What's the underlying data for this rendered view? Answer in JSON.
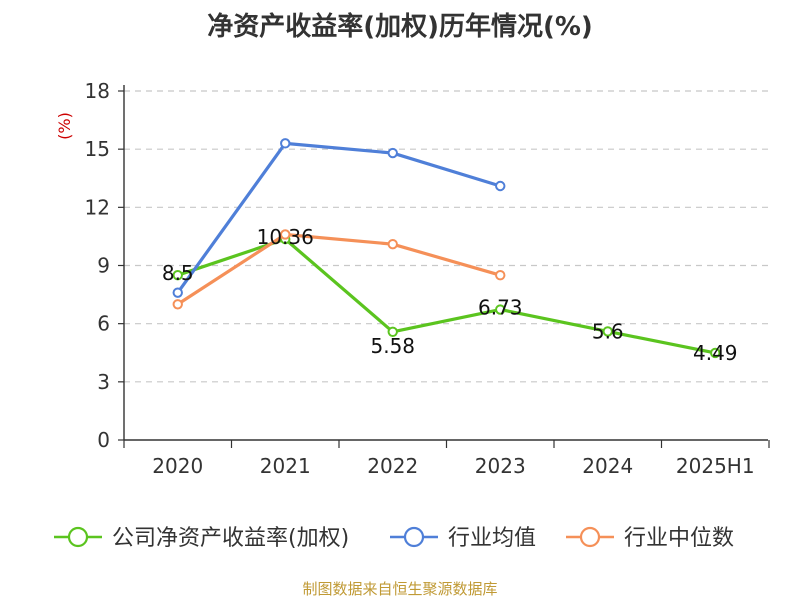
{
  "chart_data": {
    "type": "line",
    "title": "净资产收益率(加权)历年情况(%)",
    "ylabel": "(%)",
    "categories": [
      "2020",
      "2021",
      "2022",
      "2023",
      "2024",
      "2025H1"
    ],
    "ylim": [
      0,
      18
    ],
    "yticks": [
      0,
      3,
      6,
      9,
      12,
      15,
      18
    ],
    "grid": true,
    "legend_position": "bottom",
    "series": [
      {
        "name": "公司净资产收益率(加权)",
        "color": "#5bc41f",
        "values": [
          8.5,
          10.36,
          5.58,
          6.73,
          5.6,
          4.49
        ],
        "labels": [
          "8.5",
          "10.36",
          "5.58",
          "6.73",
          "5.6",
          "4.49"
        ]
      },
      {
        "name": "行业均值",
        "color": "#4f7fd8",
        "values": [
          7.6,
          15.3,
          14.8,
          13.1,
          null,
          null
        ]
      },
      {
        "name": "行业中位数",
        "color": "#f59058",
        "values": [
          7.0,
          10.6,
          10.1,
          8.5,
          null,
          null
        ]
      }
    ]
  },
  "source": "制图数据来自恒生聚源数据库"
}
